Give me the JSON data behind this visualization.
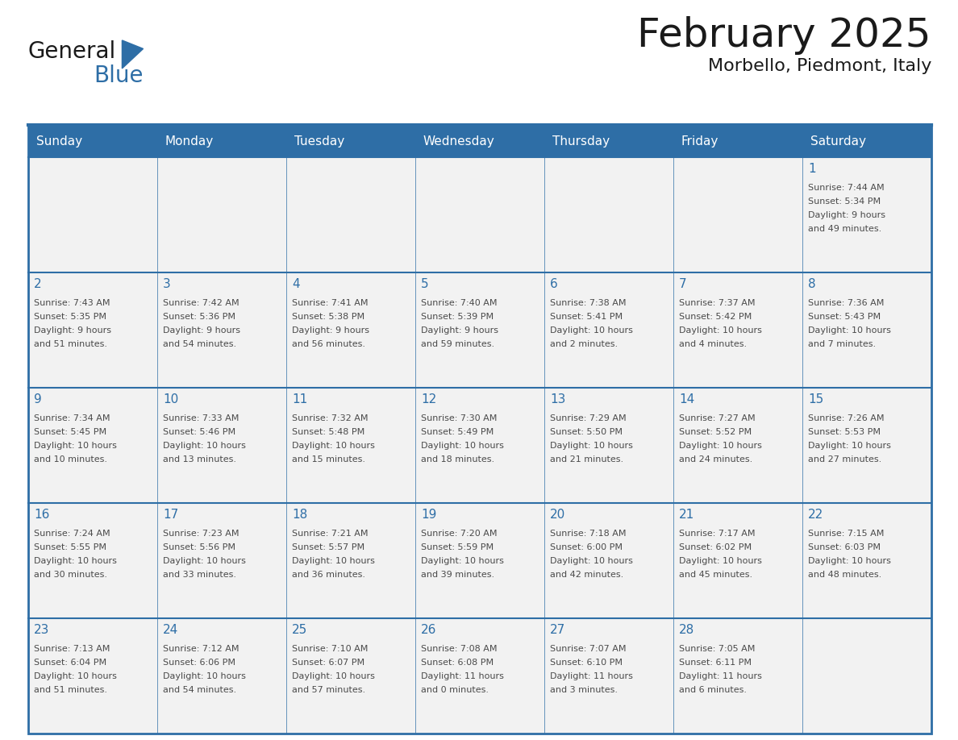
{
  "title": "February 2025",
  "subtitle": "Morbello, Piedmont, Italy",
  "days_of_week": [
    "Sunday",
    "Monday",
    "Tuesday",
    "Wednesday",
    "Thursday",
    "Friday",
    "Saturday"
  ],
  "header_bg": "#2E6EA6",
  "header_text": "#FFFFFF",
  "cell_bg": "#F2F2F2",
  "border_color": "#2E6EA6",
  "text_color": "#4a4a4a",
  "day_number_color": "#2E6EA6",
  "calendar_data": [
    [
      null,
      null,
      null,
      null,
      null,
      null,
      {
        "day": 1,
        "sunrise": "7:44 AM",
        "sunset": "5:34 PM",
        "daylight": "9 hours\nand 49 minutes."
      }
    ],
    [
      {
        "day": 2,
        "sunrise": "7:43 AM",
        "sunset": "5:35 PM",
        "daylight": "9 hours\nand 51 minutes."
      },
      {
        "day": 3,
        "sunrise": "7:42 AM",
        "sunset": "5:36 PM",
        "daylight": "9 hours\nand 54 minutes."
      },
      {
        "day": 4,
        "sunrise": "7:41 AM",
        "sunset": "5:38 PM",
        "daylight": "9 hours\nand 56 minutes."
      },
      {
        "day": 5,
        "sunrise": "7:40 AM",
        "sunset": "5:39 PM",
        "daylight": "9 hours\nand 59 minutes."
      },
      {
        "day": 6,
        "sunrise": "7:38 AM",
        "sunset": "5:41 PM",
        "daylight": "10 hours\nand 2 minutes."
      },
      {
        "day": 7,
        "sunrise": "7:37 AM",
        "sunset": "5:42 PM",
        "daylight": "10 hours\nand 4 minutes."
      },
      {
        "day": 8,
        "sunrise": "7:36 AM",
        "sunset": "5:43 PM",
        "daylight": "10 hours\nand 7 minutes."
      }
    ],
    [
      {
        "day": 9,
        "sunrise": "7:34 AM",
        "sunset": "5:45 PM",
        "daylight": "10 hours\nand 10 minutes."
      },
      {
        "day": 10,
        "sunrise": "7:33 AM",
        "sunset": "5:46 PM",
        "daylight": "10 hours\nand 13 minutes."
      },
      {
        "day": 11,
        "sunrise": "7:32 AM",
        "sunset": "5:48 PM",
        "daylight": "10 hours\nand 15 minutes."
      },
      {
        "day": 12,
        "sunrise": "7:30 AM",
        "sunset": "5:49 PM",
        "daylight": "10 hours\nand 18 minutes."
      },
      {
        "day": 13,
        "sunrise": "7:29 AM",
        "sunset": "5:50 PM",
        "daylight": "10 hours\nand 21 minutes."
      },
      {
        "day": 14,
        "sunrise": "7:27 AM",
        "sunset": "5:52 PM",
        "daylight": "10 hours\nand 24 minutes."
      },
      {
        "day": 15,
        "sunrise": "7:26 AM",
        "sunset": "5:53 PM",
        "daylight": "10 hours\nand 27 minutes."
      }
    ],
    [
      {
        "day": 16,
        "sunrise": "7:24 AM",
        "sunset": "5:55 PM",
        "daylight": "10 hours\nand 30 minutes."
      },
      {
        "day": 17,
        "sunrise": "7:23 AM",
        "sunset": "5:56 PM",
        "daylight": "10 hours\nand 33 minutes."
      },
      {
        "day": 18,
        "sunrise": "7:21 AM",
        "sunset": "5:57 PM",
        "daylight": "10 hours\nand 36 minutes."
      },
      {
        "day": 19,
        "sunrise": "7:20 AM",
        "sunset": "5:59 PM",
        "daylight": "10 hours\nand 39 minutes."
      },
      {
        "day": 20,
        "sunrise": "7:18 AM",
        "sunset": "6:00 PM",
        "daylight": "10 hours\nand 42 minutes."
      },
      {
        "day": 21,
        "sunrise": "7:17 AM",
        "sunset": "6:02 PM",
        "daylight": "10 hours\nand 45 minutes."
      },
      {
        "day": 22,
        "sunrise": "7:15 AM",
        "sunset": "6:03 PM",
        "daylight": "10 hours\nand 48 minutes."
      }
    ],
    [
      {
        "day": 23,
        "sunrise": "7:13 AM",
        "sunset": "6:04 PM",
        "daylight": "10 hours\nand 51 minutes."
      },
      {
        "day": 24,
        "sunrise": "7:12 AM",
        "sunset": "6:06 PM",
        "daylight": "10 hours\nand 54 minutes."
      },
      {
        "day": 25,
        "sunrise": "7:10 AM",
        "sunset": "6:07 PM",
        "daylight": "10 hours\nand 57 minutes."
      },
      {
        "day": 26,
        "sunrise": "7:08 AM",
        "sunset": "6:08 PM",
        "daylight": "11 hours\nand 0 minutes."
      },
      {
        "day": 27,
        "sunrise": "7:07 AM",
        "sunset": "6:10 PM",
        "daylight": "11 hours\nand 3 minutes."
      },
      {
        "day": 28,
        "sunrise": "7:05 AM",
        "sunset": "6:11 PM",
        "daylight": "11 hours\nand 6 minutes."
      },
      null
    ]
  ],
  "fig_width": 11.88,
  "fig_height": 9.18,
  "logo_text_general": "General",
  "logo_text_blue": "Blue",
  "title_fontsize": 36,
  "subtitle_fontsize": 16,
  "dow_fontsize": 11,
  "day_num_fontsize": 11,
  "cell_text_fontsize": 8
}
